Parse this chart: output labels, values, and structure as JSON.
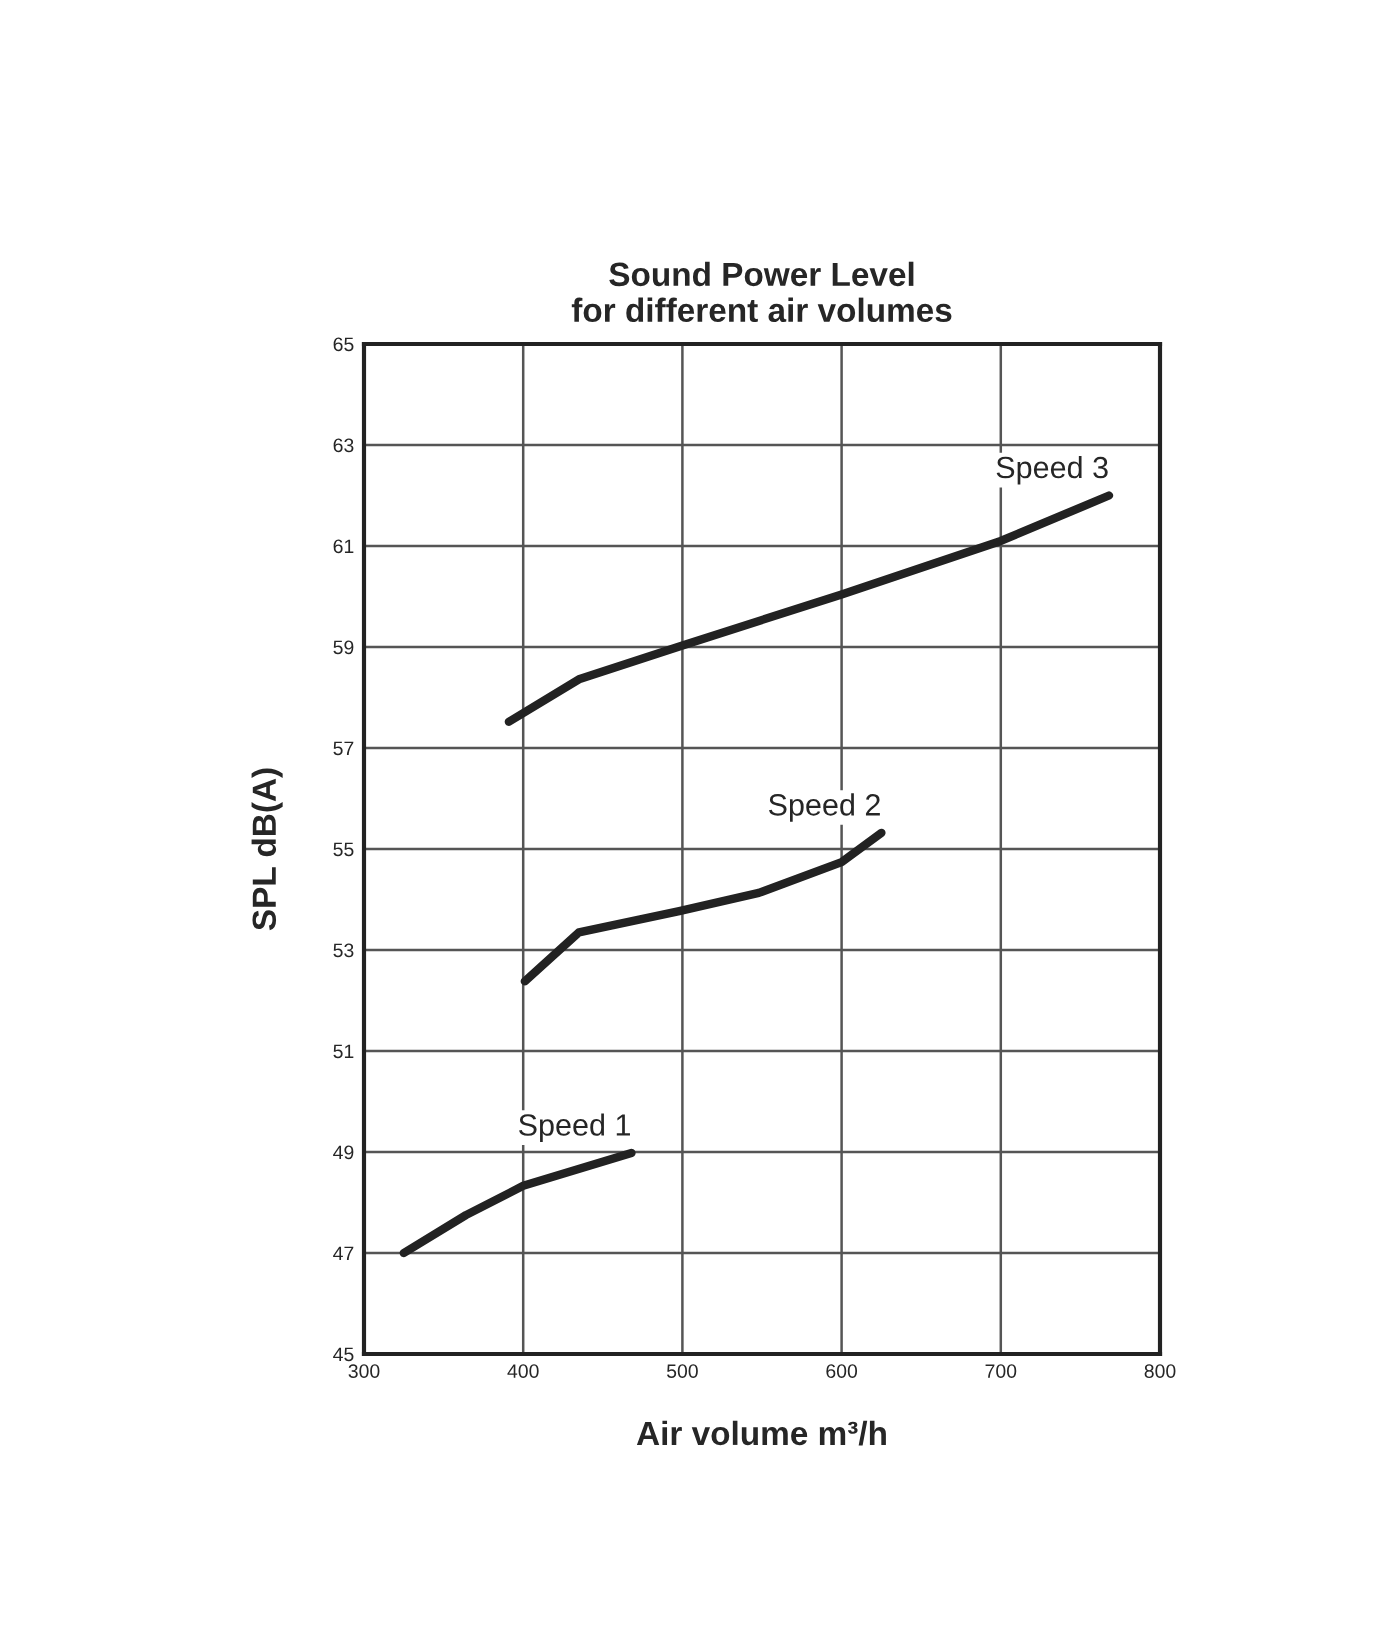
{
  "chart_data": {
    "type": "line",
    "title": "Sound Power Level\nfor different air volumes",
    "xlabel": "Air volume m³/h",
    "ylabel": "SPL dB(A)",
    "xlim": [
      300,
      800
    ],
    "xticks": [
      300,
      400,
      500,
      600,
      700,
      800
    ],
    "ylim": [
      45,
      65
    ],
    "yticks": [
      45,
      47,
      49,
      51,
      53,
      55,
      57,
      59,
      61,
      63,
      65
    ],
    "grid": true,
    "legend": false,
    "marker": "none",
    "line_style": "solid",
    "series": [
      {
        "color": "#222222",
        "x": [
          325,
          364,
          400,
          468
        ],
        "values": [
          47.0,
          47.75,
          48.33,
          48.98
        ]
      },
      {
        "color": "#222222",
        "x": [
          401,
          435,
          498,
          548,
          600,
          625
        ],
        "values": [
          52.38,
          53.35,
          53.77,
          54.13,
          54.74,
          55.32
        ]
      },
      {
        "color": "#222222",
        "x": [
          391,
          435,
          500,
          600,
          700,
          768
        ],
        "values": [
          57.52,
          58.36,
          59.03,
          60.04,
          61.1,
          62.0
        ]
      }
    ],
    "annotations": [
      {
        "text": "Speed 1",
        "x": 468,
        "y": 48.98
      },
      {
        "text": "Speed 2",
        "x": 625,
        "y": 55.32
      },
      {
        "text": "Speed 3",
        "x": 768,
        "y": 62.0
      }
    ]
  }
}
